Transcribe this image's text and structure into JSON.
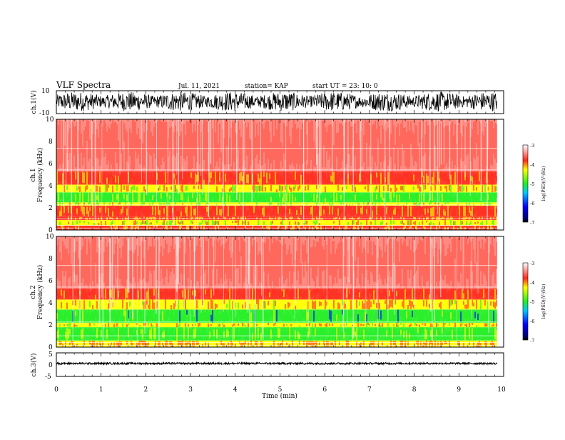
{
  "header": {
    "title": "VLF Spectra",
    "date": "Jul. 11, 2021",
    "station": "station= KAP",
    "start": "start UT =  23: 10: 0"
  },
  "chart_data": [
    {
      "type": "line",
      "ylabel": "ch.1(V)",
      "ylim": [
        -10,
        10
      ],
      "y_ticks": [
        "10",
        "-10"
      ],
      "xlim": [
        0,
        10
      ],
      "data_end_min": 9.85,
      "amplitude_range": [
        -8,
        9
      ]
    },
    {
      "type": "heatmap",
      "ylabel_line1": "ch.1",
      "ylabel_line2": "Frequency (kHz)",
      "ylim": [
        0,
        10
      ],
      "y_ticks": [
        "0",
        "2",
        "4",
        "6",
        "8",
        "10"
      ],
      "xlim": [
        0,
        10
      ],
      "data_end_min": 9.85,
      "bands_khz": [
        {
          "from": 0.0,
          "to": 0.4,
          "level": -3.7
        },
        {
          "from": 0.4,
          "to": 0.9,
          "level": -4.3
        },
        {
          "from": 0.9,
          "to": 1.2,
          "level": -3.8
        },
        {
          "from": 1.2,
          "to": 2.2,
          "level": -3.6
        },
        {
          "from": 2.2,
          "to": 2.5,
          "level": -4.4
        },
        {
          "from": 2.5,
          "to": 3.4,
          "level": -4.9
        },
        {
          "from": 3.4,
          "to": 4.1,
          "level": -4.2
        },
        {
          "from": 4.1,
          "to": 5.3,
          "level": -3.6
        },
        {
          "from": 5.3,
          "to": 10.0,
          "level": -3.1
        }
      ],
      "colorbar": {
        "label": "log(PSD)(V²/Hz)",
        "range": [
          -7,
          -3
        ],
        "ticks": [
          "-3",
          "-4",
          "-5",
          "-6",
          "-7"
        ]
      }
    },
    {
      "type": "heatmap",
      "ylabel_line1": "ch.2",
      "ylabel_line2": "Frequency (kHz)",
      "ylim": [
        0,
        10
      ],
      "y_ticks": [
        "0",
        "2",
        "4",
        "6",
        "8",
        "10"
      ],
      "xlim": [
        0,
        10
      ],
      "data_end_min": 9.85,
      "bands_khz": [
        {
          "from": 0.0,
          "to": 0.6,
          "level": -3.9
        },
        {
          "from": 0.6,
          "to": 1.8,
          "level": -4.9
        },
        {
          "from": 1.8,
          "to": 2.2,
          "level": -4.2
        },
        {
          "from": 2.2,
          "to": 3.4,
          "level": -5.1
        },
        {
          "from": 3.4,
          "to": 4.3,
          "level": -4.1
        },
        {
          "from": 4.3,
          "to": 5.3,
          "level": -3.5
        },
        {
          "from": 5.3,
          "to": 10.0,
          "level": -3.1
        }
      ],
      "colorbar": {
        "label": "log(PSD)(V²/Hz)",
        "range": [
          -7,
          -3
        ],
        "ticks": [
          "-3",
          "-4",
          "-5",
          "-6",
          "-7"
        ]
      }
    },
    {
      "type": "line",
      "ylabel": "ch.3(V)",
      "ylim": [
        -5,
        5
      ],
      "y_ticks": [
        "5",
        "0",
        "-5"
      ],
      "xlim": [
        0,
        10
      ],
      "data_end_min": 9.85,
      "baseline": 0.5,
      "amplitude": 0.4
    }
  ],
  "x_axis": {
    "label": "Time (min)",
    "ticks": [
      "0",
      "1",
      "2",
      "3",
      "4",
      "5",
      "6",
      "7",
      "8",
      "9",
      "10"
    ]
  },
  "colors": {
    "red": "#ff2a1a",
    "yellow": "#ffff00",
    "green": "#22ee22",
    "blue": "#0000ff"
  }
}
